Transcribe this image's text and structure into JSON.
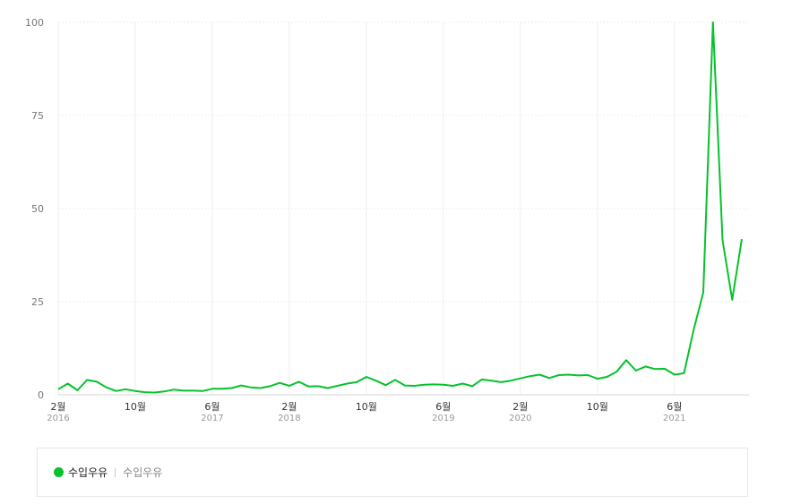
{
  "chart_data": {
    "type": "line",
    "ylim": [
      0,
      100
    ],
    "yticks": [
      "100",
      "75",
      "50",
      "25",
      "0"
    ],
    "xticks": [
      {
        "index": 0,
        "month": "2월",
        "year": "2016"
      },
      {
        "index": 8,
        "month": "10월",
        "year": ""
      },
      {
        "index": 16,
        "month": "6월",
        "year": "2017"
      },
      {
        "index": 24,
        "month": "2월",
        "year": "2018"
      },
      {
        "index": 32,
        "month": "10월",
        "year": ""
      },
      {
        "index": 40,
        "month": "6월",
        "year": "2019"
      },
      {
        "index": 48,
        "month": "2월",
        "year": "2020"
      },
      {
        "index": 56,
        "month": "10월",
        "year": ""
      },
      {
        "index": 64,
        "month": "6월",
        "year": "2021"
      }
    ],
    "grid": true,
    "legend_position": "bottom",
    "series": [
      {
        "name": "수입우유",
        "color": "#06c22c",
        "values": [
          1.5,
          3,
          1.2,
          4,
          3.5,
          2,
          1,
          1.5,
          1,
          0.7,
          0.6,
          0.9,
          1.4,
          1.1,
          1.1,
          1,
          1.6,
          1.6,
          1.8,
          2.5,
          2,
          1.8,
          2.3,
          3.2,
          2.4,
          3.5,
          2.2,
          2.3,
          1.8,
          2.4,
          3,
          3.4,
          4.8,
          3.8,
          2.6,
          4,
          2.5,
          2.4,
          2.7,
          2.8,
          2.7,
          2.4,
          3,
          2.3,
          4.1,
          3.8,
          3.4,
          3.8,
          4.4,
          5,
          5.4,
          4.5,
          5.3,
          5.4,
          5.2,
          5.3,
          4.3,
          4.8,
          6.2,
          9.3,
          6.5,
          7.6,
          6.9,
          7,
          5.4,
          5.8,
          17.5,
          27.5,
          100,
          41.5,
          25.5,
          41.8
        ]
      }
    ]
  },
  "legend": {
    "name": "수입우유",
    "desc": "수입우유"
  }
}
